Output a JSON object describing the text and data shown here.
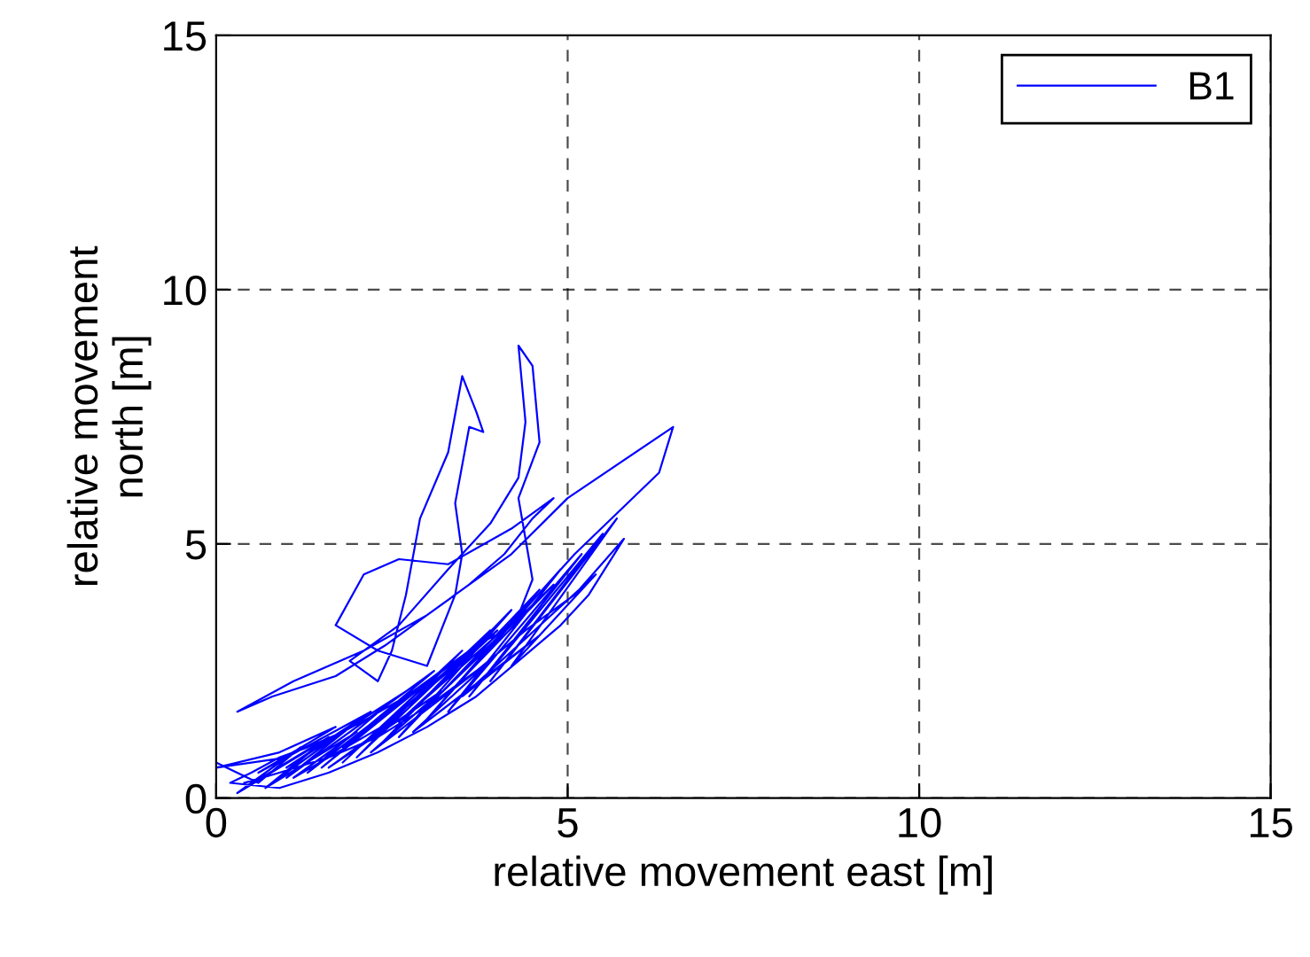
{
  "chart_data": {
    "type": "line",
    "xlabel": "relative movement east [m]",
    "ylabel": "relative movement\nnorth [m]",
    "xlim": [
      0,
      15
    ],
    "ylim": [
      0,
      15
    ],
    "xticks": [
      0,
      5,
      10,
      15
    ],
    "yticks": [
      0,
      5,
      10,
      15
    ],
    "grid": true,
    "legend": "top right",
    "line_style": "solid",
    "marker": "none",
    "series": [
      {
        "name": "B1",
        "color": "#0000ff",
        "x": [
          0.0,
          0.6,
          1.2,
          0.4,
          1.6,
          0.8,
          2.0,
          1.0,
          2.4,
          1.3,
          2.8,
          1.5,
          3.2,
          1.8,
          3.5,
          2.0,
          3.9,
          2.3,
          4.2,
          2.6,
          4.6,
          2.9,
          4.9,
          3.3,
          5.2,
          3.6,
          5.5,
          3.9,
          5.7,
          4.2,
          5.4,
          3.5,
          4.6,
          2.8,
          3.9,
          2.2,
          3.2,
          1.6,
          2.6,
          1.1,
          2.0,
          0.7,
          1.5,
          0.3,
          1.0,
          0.0,
          0.9,
          1.7,
          0.6,
          2.2,
          1.0,
          2.7,
          1.4,
          3.1,
          1.8,
          3.6,
          2.2,
          4.0,
          2.6,
          4.4,
          3.0,
          4.8,
          3.4,
          5.1,
          6.3,
          6.5,
          5.0,
          4.2,
          3.2,
          2.4,
          1.7,
          0.8,
          0.3,
          1.1,
          2.1,
          3.0,
          3.6,
          4.1,
          4.5,
          4.8,
          4.2,
          3.3,
          2.6,
          2.1,
          1.7,
          2.3,
          3.0,
          3.4,
          3.5,
          3.4,
          3.6,
          3.8,
          3.7,
          3.5,
          3.3,
          2.9,
          2.7,
          2.5,
          2.3,
          1.9,
          2.6,
          3.3,
          3.9,
          4.3,
          4.4,
          4.3,
          4.5,
          4.6,
          4.3,
          4.4,
          4.5,
          4.3,
          4.1,
          3.7,
          3.2,
          2.7,
          2.2,
          1.8,
          1.3,
          0.9,
          0.5,
          0.2,
          0.9,
          1.6,
          2.3,
          3.0,
          3.7,
          4.3,
          4.9,
          5.3,
          5.8,
          5.1,
          4.4,
          3.7,
          3.0,
          2.3,
          1.6,
          0.9,
          0.4
        ],
        "values": [
          0.7,
          0.3,
          1.0,
          0.2,
          1.2,
          0.3,
          1.5,
          0.4,
          1.8,
          0.5,
          2.1,
          0.6,
          2.5,
          0.7,
          2.9,
          0.8,
          3.3,
          1.0,
          3.7,
          1.2,
          4.1,
          1.4,
          4.5,
          1.7,
          4.8,
          2.0,
          5.2,
          2.3,
          5.5,
          2.6,
          4.4,
          2.0,
          3.2,
          1.3,
          2.7,
          0.9,
          2.1,
          0.6,
          1.6,
          0.4,
          1.3,
          0.2,
          1.1,
          0.1,
          0.8,
          0.6,
          0.9,
          1.4,
          0.5,
          1.7,
          0.6,
          2.1,
          0.8,
          2.5,
          1.0,
          2.9,
          1.2,
          3.3,
          1.5,
          3.7,
          1.8,
          4.2,
          2.2,
          4.8,
          6.4,
          7.3,
          5.9,
          4.8,
          3.8,
          3.0,
          2.4,
          2.0,
          1.7,
          2.3,
          2.9,
          3.6,
          4.2,
          4.8,
          5.5,
          5.9,
          5.3,
          4.6,
          4.7,
          4.4,
          3.4,
          2.9,
          2.6,
          4.0,
          4.8,
          5.8,
          7.3,
          7.2,
          7.6,
          8.3,
          6.8,
          5.5,
          4.0,
          2.9,
          2.3,
          2.7,
          3.4,
          4.5,
          5.4,
          6.3,
          7.4,
          8.9,
          8.5,
          7.0,
          5.9,
          5.1,
          4.3,
          3.6,
          3.3,
          3.0,
          2.5,
          2.0,
          1.6,
          1.3,
          1.0,
          0.8,
          0.5,
          0.3,
          0.2,
          0.5,
          0.9,
          1.4,
          2.0,
          2.7,
          3.4,
          4.0,
          5.1,
          4.0,
          3.3,
          2.5,
          1.8,
          1.2,
          0.8,
          0.5,
          0.3
        ]
      }
    ]
  }
}
